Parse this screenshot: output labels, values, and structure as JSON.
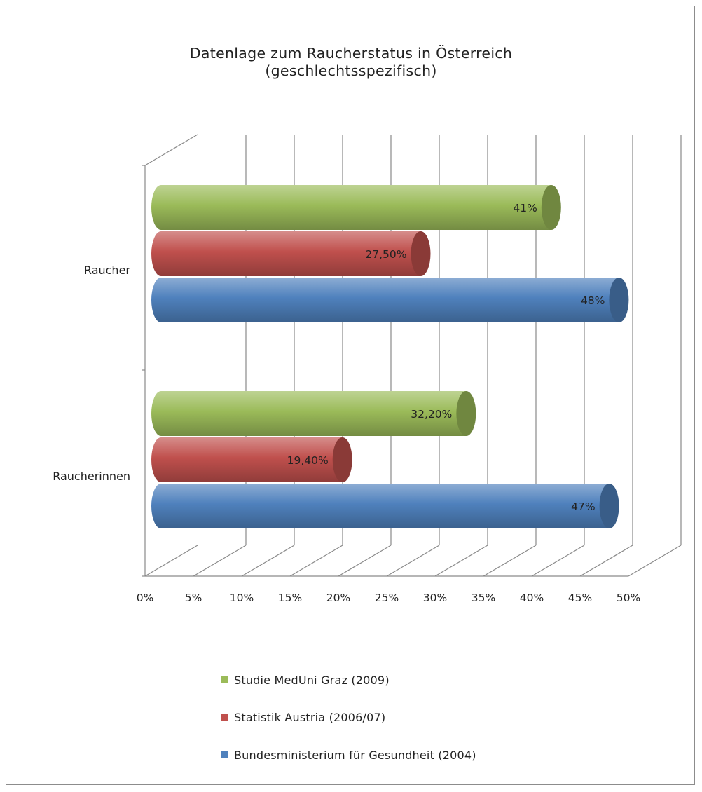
{
  "chart_data": {
    "type": "bar",
    "orientation": "horizontal",
    "style": "3d-cylinder",
    "title": [
      "Datenlage zum Raucherstatus in Österreich",
      "(geschlechtsspezifisch)"
    ],
    "categories": [
      "Raucher",
      "Raucherinnen"
    ],
    "xlim": [
      0,
      50
    ],
    "xticks": [
      "0%",
      "5%",
      "10%",
      "15%",
      "20%",
      "25%",
      "30%",
      "35%",
      "40%",
      "45%",
      "50%"
    ],
    "grid": true,
    "legend_position": "bottom",
    "series": [
      {
        "name": "Studie MedUni Graz (2009)",
        "color": "#9bbb59",
        "values": [
          41,
          32.2
        ],
        "labels": [
          "41%",
          "32,20%"
        ]
      },
      {
        "name": "Statistik Austria (2006/07)",
        "color": "#c0504d",
        "values": [
          27.5,
          19.4
        ],
        "labels": [
          "27,50%",
          "19,40%"
        ]
      },
      {
        "name": "Bundesministerium für Gesundheit (2004)",
        "color": "#4f81bd",
        "values": [
          48,
          47
        ],
        "labels": [
          "48%",
          "47%"
        ]
      }
    ]
  }
}
